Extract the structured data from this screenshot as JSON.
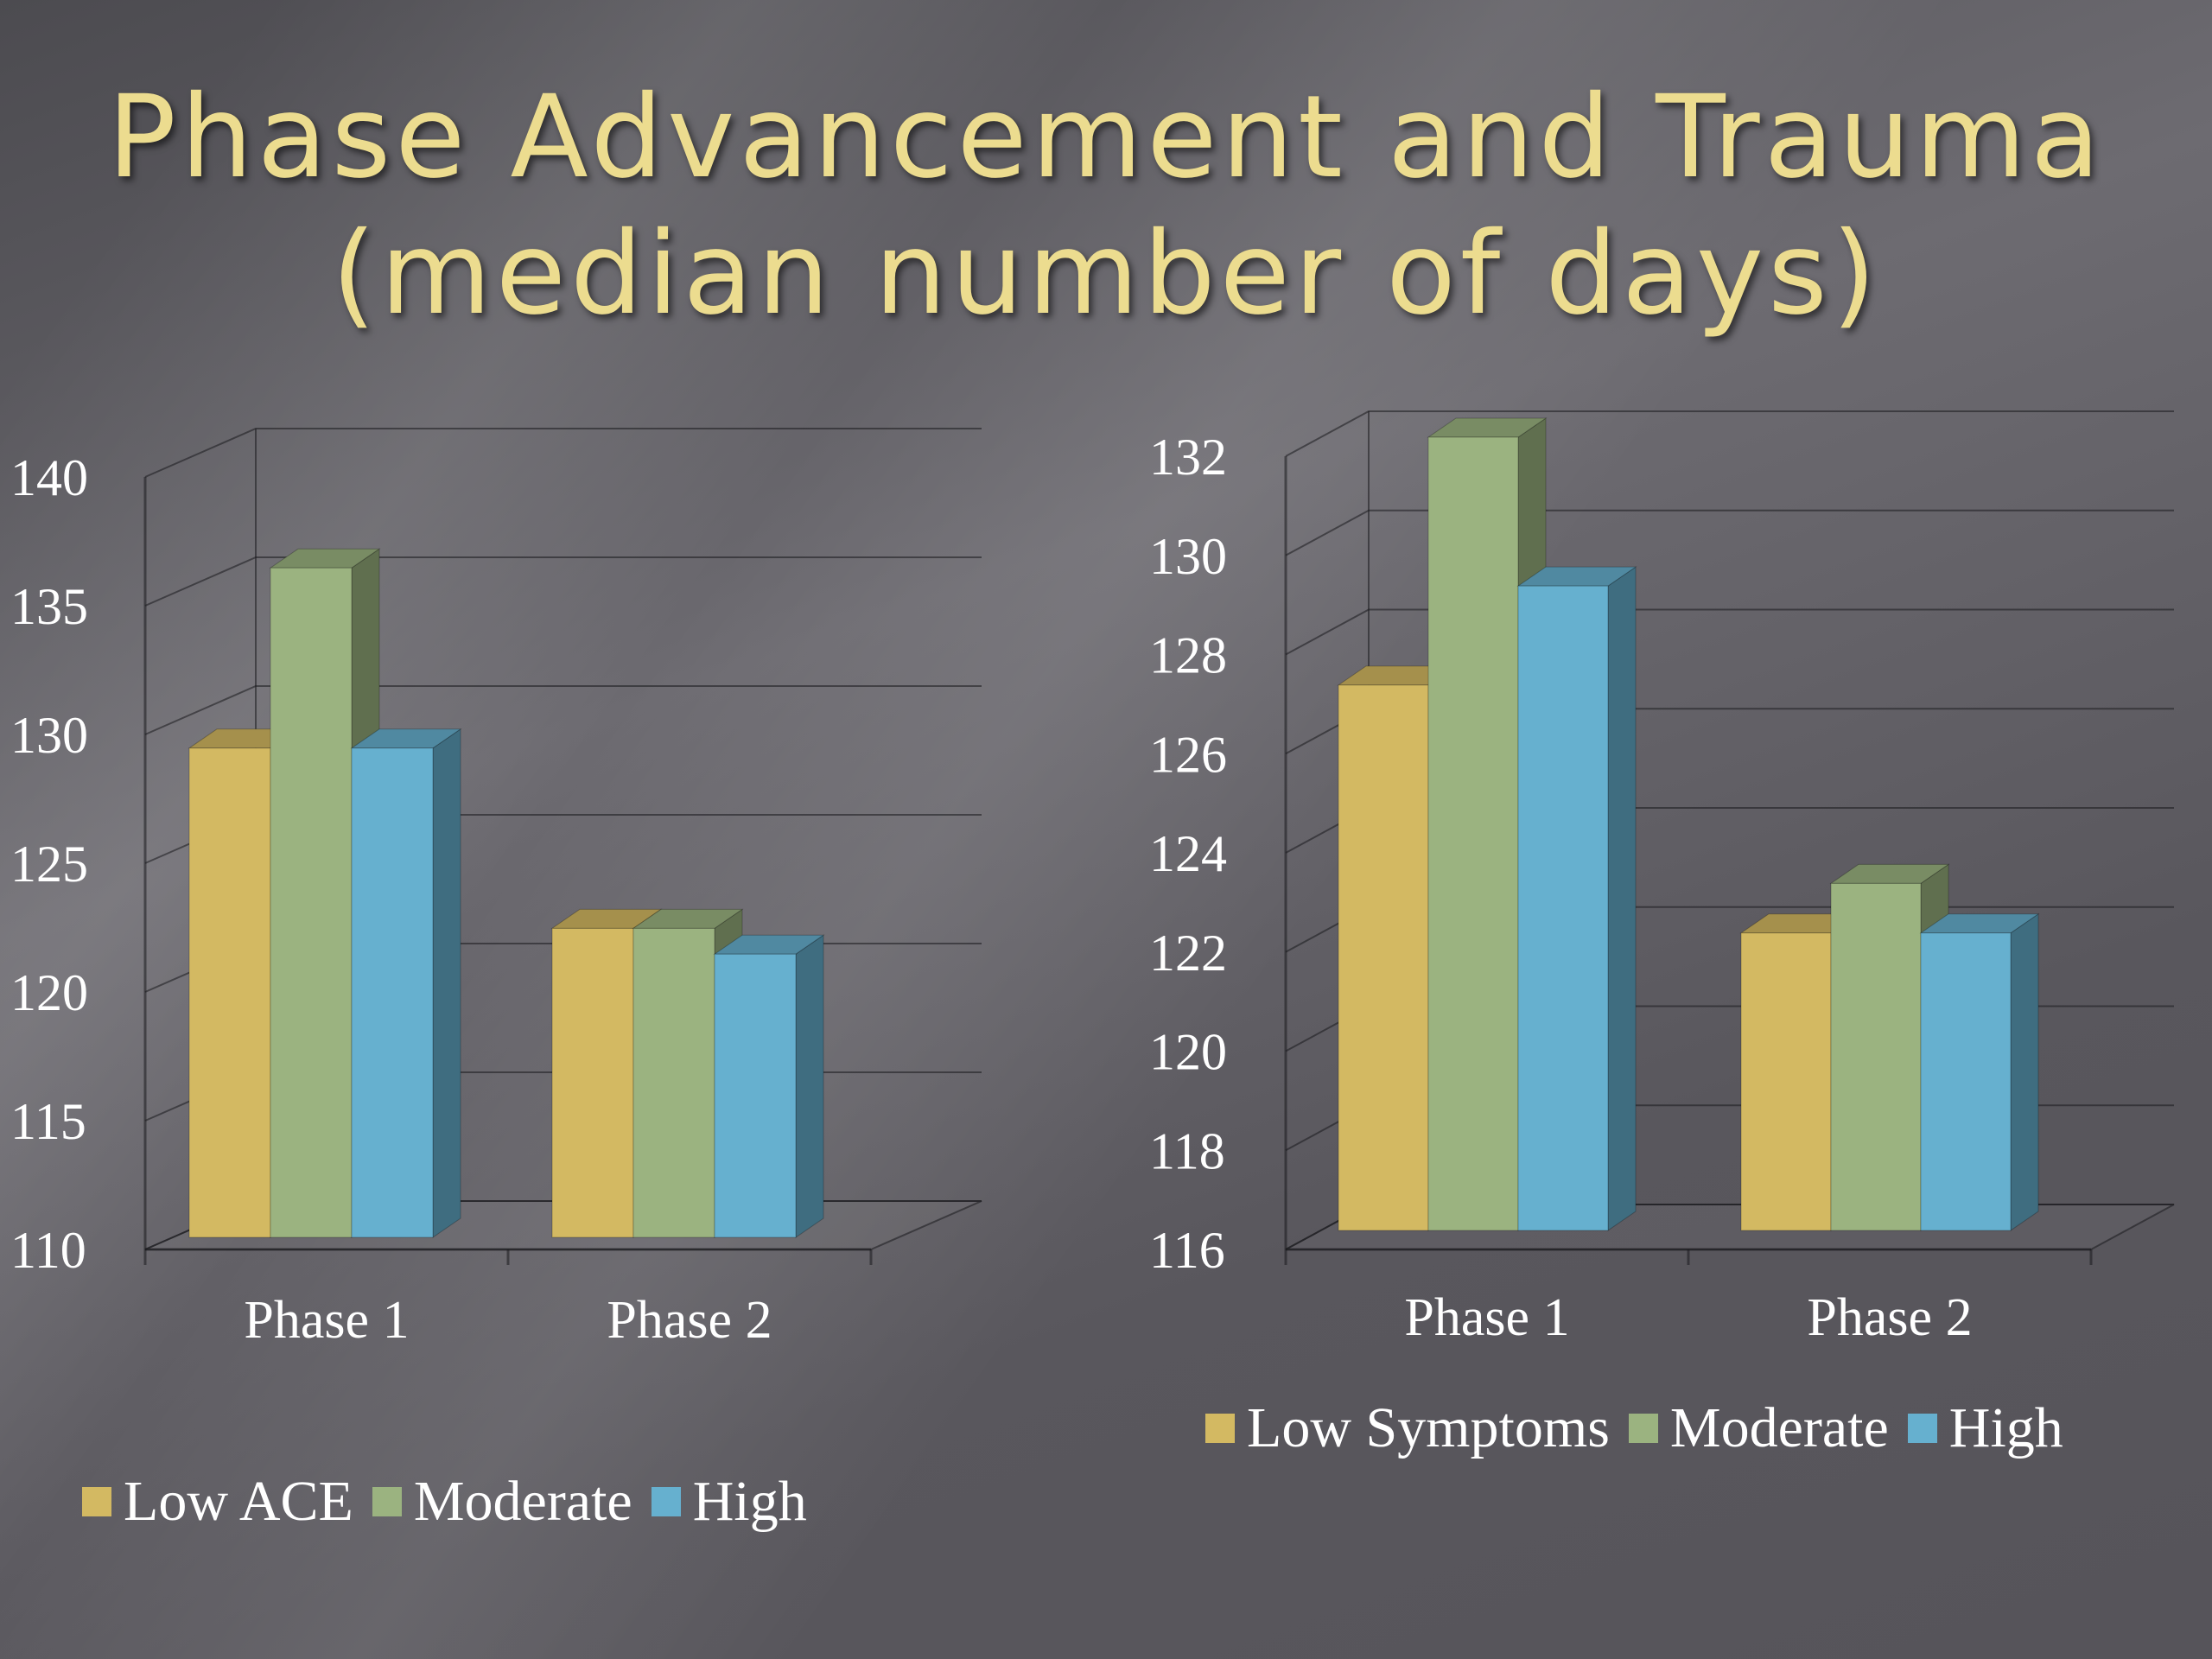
{
  "slide": {
    "title_line1": "Phase Advancement and Trauma",
    "title_line2": "(median number of days)"
  },
  "colors": {
    "low": "#d3b962",
    "moderate": "#9bb380",
    "high": "#66b0cf"
  },
  "chart_data": [
    {
      "type": "bar",
      "categories": [
        "Phase 1",
        "Phase 2"
      ],
      "series": [
        {
          "name": "Low ACE",
          "values": [
            129,
            122
          ]
        },
        {
          "name": "Moderate",
          "values": [
            136,
            122
          ]
        },
        {
          "name": "High",
          "values": [
            129,
            121
          ]
        }
      ],
      "yticks": [
        "110",
        "115",
        "120",
        "125",
        "130",
        "135",
        "140"
      ],
      "ylim": [
        110,
        140
      ],
      "grid": true,
      "legend": "bottom"
    },
    {
      "type": "bar",
      "categories": [
        "Phase 1",
        "Phase 2"
      ],
      "series": [
        {
          "name": "Low Symptoms",
          "values": [
            127,
            122
          ]
        },
        {
          "name": "Moderate",
          "values": [
            132,
            123
          ]
        },
        {
          "name": "High",
          "values": [
            129,
            122
          ]
        }
      ],
      "yticks": [
        "116",
        "118",
        "120",
        "122",
        "124",
        "126",
        "128",
        "130",
        "132"
      ],
      "ylim": [
        116,
        132
      ],
      "grid": true,
      "legend": "bottom"
    }
  ]
}
